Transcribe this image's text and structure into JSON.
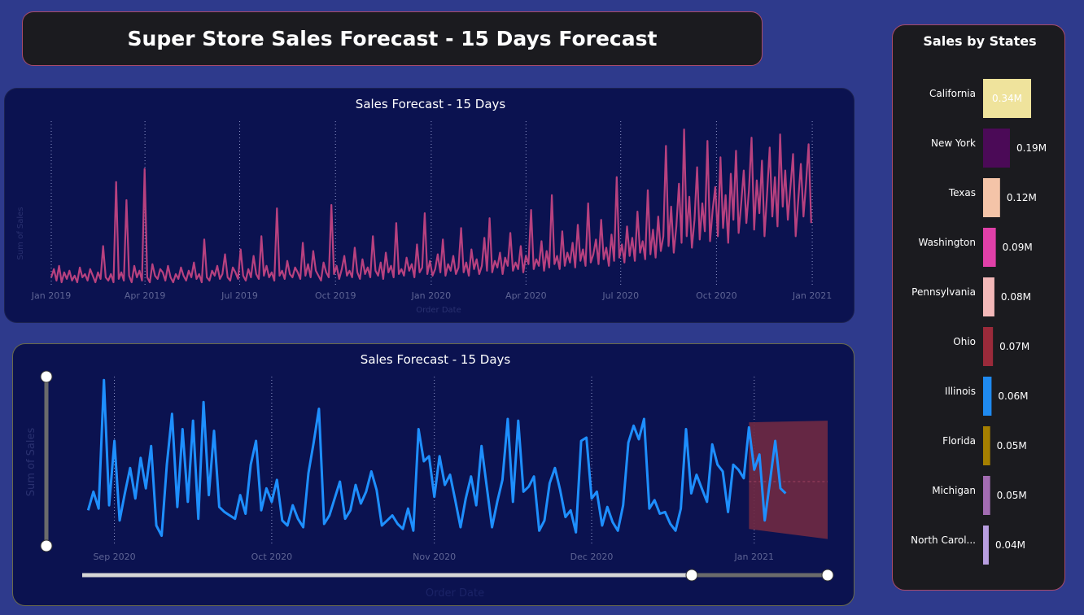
{
  "page_title": "Super Store Sales Forecast - 15 Days Forecast",
  "colors": {
    "background": "#2e3a8c",
    "panel": "#0b1250",
    "line_top": "#b8417f",
    "line_bottom": "#1e8fff",
    "forecast_band": "#6f2a43",
    "side_panel": "#1b1b1f"
  },
  "chart_data": [
    {
      "type": "line",
      "title": "Sales Forecast - 15 Days",
      "xlabel": "Order Date",
      "ylabel": "Sum of Sales",
      "x_ticks": [
        "Jan 2019",
        "Apr 2019",
        "Jul 2019",
        "Oct 2019",
        "Jan 2020",
        "Apr 2020",
        "Jul 2020",
        "Oct 2020",
        "Jan 2021"
      ],
      "x_range": [
        "2019-01-01",
        "2021-01-15"
      ],
      "grid": "vertical dotted",
      "series": [
        {
          "values_note": "daily sales, estimated",
          "values": [
            0.05,
            0.1,
            0.03,
            0.12,
            0.02,
            0.08,
            0.04,
            0.09,
            0.03,
            0.06,
            0.02,
            0.11,
            0.05,
            0.07,
            0.03,
            0.1,
            0.06,
            0.02,
            0.08,
            0.04,
            0.24,
            0.05,
            0.03,
            0.07,
            0.02,
            0.63,
            0.04,
            0.08,
            0.03,
            0.52,
            0.06,
            0.02,
            0.12,
            0.05,
            0.09,
            0.03,
            0.71,
            0.05,
            0.02,
            0.13,
            0.06,
            0.04,
            0.1,
            0.08,
            0.03,
            0.12,
            0.05,
            0.02,
            0.07,
            0.04,
            0.11,
            0.06,
            0.03,
            0.09,
            0.05,
            0.14,
            0.04,
            0.07,
            0.02,
            0.28,
            0.05,
            0.03,
            0.09,
            0.06,
            0.12,
            0.04,
            0.07,
            0.19,
            0.05,
            0.03,
            0.11,
            0.08,
            0.04,
            0.22,
            0.06,
            0.03,
            0.1,
            0.05,
            0.18,
            0.07,
            0.04,
            0.3,
            0.06,
            0.12,
            0.05,
            0.08,
            0.03,
            0.47,
            0.06,
            0.09,
            0.04,
            0.15,
            0.07,
            0.05,
            0.11,
            0.08,
            0.04,
            0.26,
            0.06,
            0.13,
            0.05,
            0.21,
            0.09,
            0.06,
            0.03,
            0.14,
            0.08,
            0.05,
            0.49,
            0.07,
            0.12,
            0.04,
            0.1,
            0.18,
            0.06,
            0.09,
            0.05,
            0.23,
            0.08,
            0.04,
            0.16,
            0.07,
            0.11,
            0.05,
            0.3,
            0.09,
            0.06,
            0.14,
            0.04,
            0.2,
            0.08,
            0.12,
            0.05,
            0.38,
            0.07,
            0.1,
            0.06,
            0.17,
            0.09,
            0.13,
            0.05,
            0.25,
            0.08,
            0.11,
            0.44,
            0.07,
            0.15,
            0.06,
            0.1,
            0.19,
            0.08,
            0.28,
            0.06,
            0.13,
            0.09,
            0.18,
            0.07,
            0.11,
            0.35,
            0.08,
            0.14,
            0.06,
            0.22,
            0.1,
            0.16,
            0.07,
            0.12,
            0.29,
            0.09,
            0.41,
            0.08,
            0.15,
            0.11,
            0.2,
            0.07,
            0.17,
            0.12,
            0.32,
            0.09,
            0.14,
            0.1,
            0.24,
            0.08,
            0.18,
            0.13,
            0.46,
            0.1,
            0.16,
            0.12,
            0.27,
            0.09,
            0.21,
            0.11,
            0.55,
            0.13,
            0.18,
            0.1,
            0.33,
            0.12,
            0.2,
            0.14,
            0.26,
            0.11,
            0.37,
            0.15,
            0.22,
            0.12,
            0.5,
            0.14,
            0.19,
            0.28,
            0.13,
            0.4,
            0.16,
            0.23,
            0.12,
            0.31,
            0.15,
            0.66,
            0.17,
            0.25,
            0.14,
            0.36,
            0.18,
            0.29,
            0.15,
            0.45,
            0.2,
            0.27,
            0.16,
            0.58,
            0.19,
            0.34,
            0.17,
            0.42,
            0.21,
            0.3,
            0.85,
            0.24,
            0.48,
            0.2,
            0.36,
            0.62,
            0.26,
            0.95,
            0.3,
            0.54,
            0.23,
            0.4,
            0.72,
            0.28,
            0.5,
            0.33,
            0.88,
            0.27,
            0.46,
            0.6,
            0.3,
            0.78,
            0.35,
            0.55,
            0.26,
            0.68,
            0.4,
            0.82,
            0.32,
            0.5,
            0.7,
            0.38,
            0.58,
            0.9,
            0.34,
            0.64,
            0.44,
            0.76,
            0.3,
            0.56,
            0.84,
            0.42,
            0.66,
            0.36,
            0.92,
            0.48,
            0.7,
            0.4,
            0.6,
            0.8,
            0.3,
            0.52,
            0.74,
            0.42,
            0.62,
            0.86,
            0.38
          ]
        }
      ]
    },
    {
      "type": "line",
      "title": "Sales Forecast - 15 Days",
      "xlabel": "Order Date",
      "ylabel": "Sum of Sales",
      "x_ticks": [
        "Sep 2020",
        "Oct 2020",
        "Nov 2020",
        "Dec 2020",
        "Jan 2021"
      ],
      "x_range": [
        "2020-08-24",
        "2021-01-15"
      ],
      "grid": "vertical dotted",
      "series": [
        {
          "start_date": "2020-08-27",
          "values": [
            2.1,
            3.2,
            2.2,
            9.8,
            2.4,
            6.2,
            1.5,
            3.1,
            4.6,
            2.8,
            5.2,
            3.4,
            5.9,
            1.2,
            0.6,
            4.8,
            7.8,
            2.3,
            6.9,
            2.6,
            7.4,
            1.6,
            8.5,
            3.0,
            6.8,
            2.3,
            2.0,
            1.8,
            1.6,
            3.0,
            1.9,
            4.8,
            6.2,
            2.1,
            3.4,
            2.6,
            3.9,
            1.5,
            1.2,
            2.4,
            1.6,
            1.1,
            4.3,
            6.1,
            8.1,
            1.3,
            1.8,
            2.8,
            3.8,
            1.6,
            2.1,
            3.6,
            2.5,
            3.2,
            4.4,
            3.3,
            1.2,
            1.5,
            1.8,
            1.3,
            1.0,
            2.2,
            0.9,
            6.9,
            5.0,
            5.3,
            2.9,
            5.3,
            3.6,
            4.2,
            2.7,
            1.1,
            2.8,
            4.1,
            2.4,
            5.9,
            3.5,
            1.1,
            2.6,
            3.9,
            7.5,
            2.6,
            7.4,
            3.2,
            3.5,
            4.1,
            0.9,
            1.5,
            3.7,
            4.6,
            3.3,
            1.7,
            2.1,
            0.8,
            6.2,
            6.4,
            2.8,
            3.2,
            1.2,
            2.3,
            1.4,
            0.9,
            2.4,
            6.1,
            7.1,
            6.3,
            7.5,
            2.2,
            2.7,
            1.9,
            2.0,
            1.3,
            0.9,
            2.2,
            6.9,
            3.1,
            4.2,
            3.4,
            2.6,
            6.0,
            4.8,
            4.4,
            2.0,
            4.8,
            4.5,
            4.0,
            7.0,
            4.5,
            5.4,
            1.5,
            3.8,
            6.2,
            3.4,
            3.1
          ]
        }
      ],
      "forecast_band": {
        "start": "2020-12-31",
        "end": "2021-01-15",
        "upper": [
          7.3,
          7.4
        ],
        "lower": [
          1.0,
          0.4
        ],
        "mid": 3.8
      },
      "y_range": [
        0,
        10
      ]
    },
    {
      "type": "bar",
      "title": "Sales by States",
      "categories": [
        "California",
        "New York",
        "Texas",
        "Washington",
        "Pennsylvania",
        "Ohio",
        "Illinois",
        "Florida",
        "Michigan",
        "North Carol..."
      ],
      "values": [
        0.34,
        0.19,
        0.12,
        0.09,
        0.08,
        0.07,
        0.06,
        0.05,
        0.05,
        0.04
      ],
      "labels": [
        "0.34M",
        "0.19M",
        "0.12M",
        "0.09M",
        "0.08M",
        "0.07M",
        "0.06M",
        "0.05M",
        "0.05M",
        "0.04M"
      ],
      "colors": [
        "#efe39c",
        "#4b0a57",
        "#f4c4a8",
        "#e040a8",
        "#f3b8b8",
        "#9a2a3a",
        "#1f8af0",
        "#a57f00",
        "#a36cb2",
        "#b89ee0"
      ]
    }
  ]
}
